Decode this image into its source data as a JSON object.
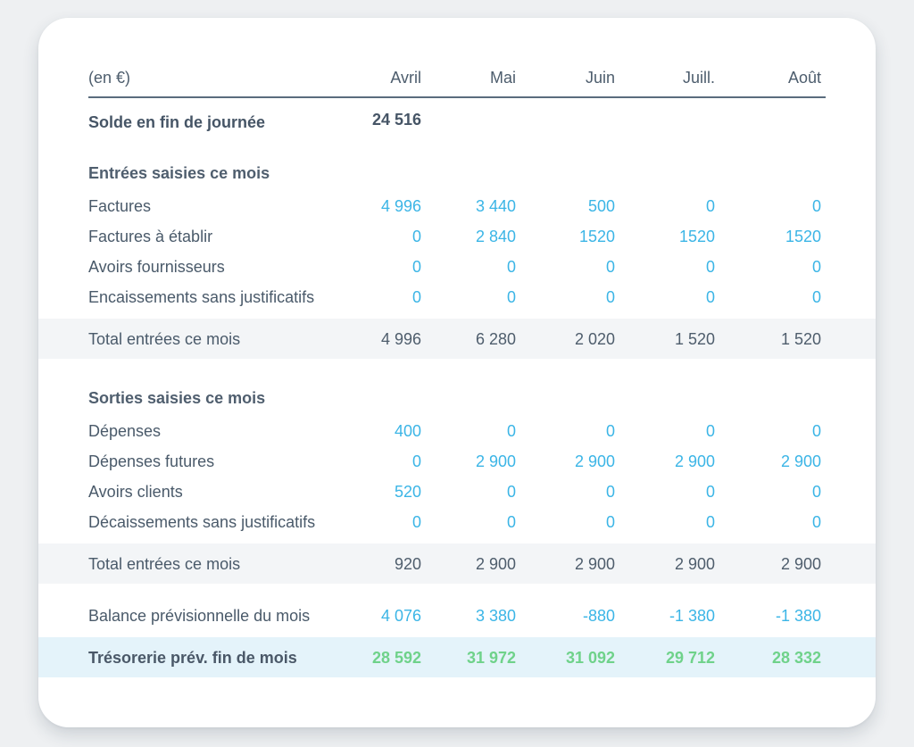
{
  "header": {
    "unit": "(en €)",
    "months": [
      "Avril",
      "Mai",
      "Juin",
      "Juill.",
      "Août"
    ]
  },
  "solde": {
    "label": "Solde en fin de journée",
    "value": "24 516"
  },
  "entrees": {
    "title": "Entrées saisies ce mois",
    "rows": [
      {
        "label": "Factures",
        "values": [
          "4 996",
          "3 440",
          "500",
          "0",
          "0"
        ]
      },
      {
        "label": "Factures à établir",
        "values": [
          "0",
          "2 840",
          "1520",
          "1520",
          "1520"
        ]
      },
      {
        "label": "Avoirs fournisseurs",
        "values": [
          "0",
          "0",
          "0",
          "0",
          "0"
        ]
      },
      {
        "label": "Encaissements sans justificatifs",
        "values": [
          "0",
          "0",
          "0",
          "0",
          "0"
        ]
      }
    ],
    "total": {
      "label": "Total entrées ce mois",
      "values": [
        "4 996",
        "6 280",
        "2 020",
        "1 520",
        "1 520"
      ]
    }
  },
  "sorties": {
    "title": "Sorties saisies ce mois",
    "rows": [
      {
        "label": "Dépenses",
        "values": [
          "400",
          "0",
          "0",
          "0",
          "0"
        ]
      },
      {
        "label": "Dépenses futures",
        "values": [
          "0",
          "2 900",
          "2 900",
          "2 900",
          "2 900"
        ]
      },
      {
        "label": "Avoirs clients",
        "values": [
          "520",
          "0",
          "0",
          "0",
          "0"
        ]
      },
      {
        "label": "Décaissements sans justificatifs",
        "values": [
          "0",
          "0",
          "0",
          "0",
          "0"
        ]
      }
    ],
    "total": {
      "label": "Total entrées ce mois",
      "values": [
        "920",
        "2 900",
        "2 900",
        "2 900",
        "2 900"
      ]
    }
  },
  "balance": {
    "label": "Balance prévisionnelle du mois",
    "values": [
      "4 076",
      "3 380",
      "-880",
      "-1 380",
      "-1 380"
    ]
  },
  "tresorerie": {
    "label": "Trésorerie prév. fin de mois",
    "values": [
      "28 592",
      "31 972",
      "31 092",
      "29 712",
      "28 332"
    ]
  },
  "colors": {
    "blue_value": "#3bb5e6",
    "green_value": "#6fd28a",
    "text": "#4a5a6a",
    "total_band": "#f3f5f7",
    "highlight_band": "#e4f3fa"
  }
}
